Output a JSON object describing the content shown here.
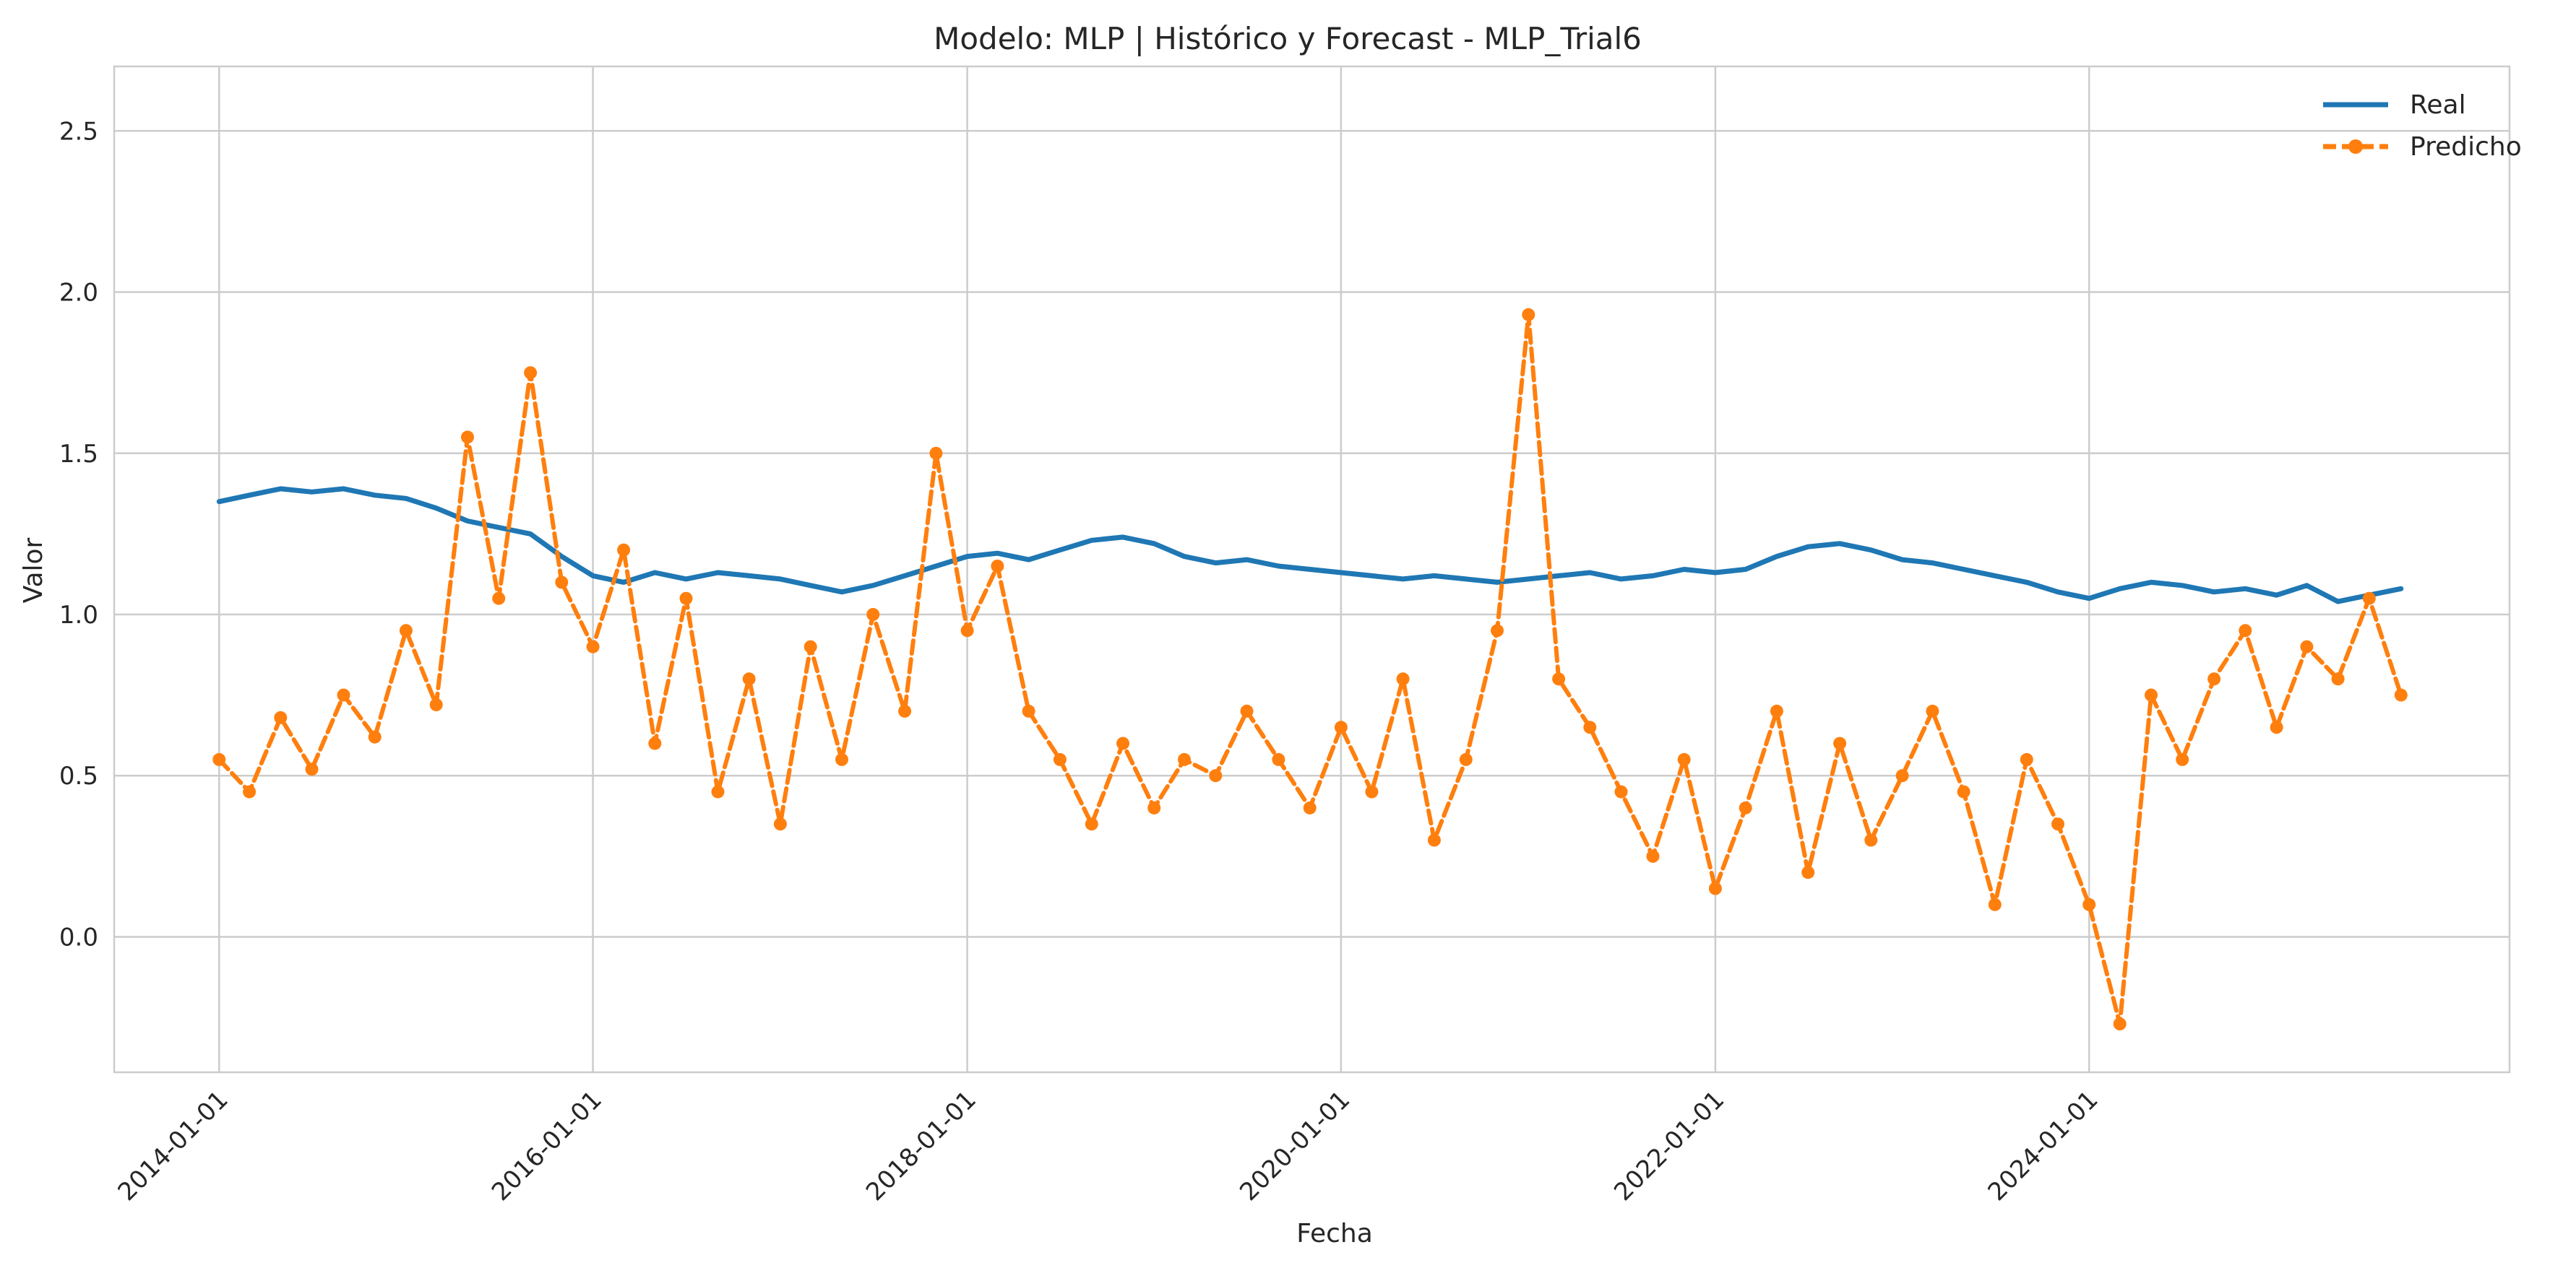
{
  "chart_data": {
    "type": "line",
    "title": "Modelo: MLP | Histórico y Forecast - MLP_Trial6",
    "xlabel": "Fecha",
    "ylabel": "Valor",
    "x_ticks": [
      "2014-01-01",
      "2016-01-01",
      "2018-01-01",
      "2020-01-01",
      "2022-01-01",
      "2024-01-01"
    ],
    "y_ticks": [
      "0.0",
      "0.5",
      "1.0",
      "1.5",
      "2.0",
      "2.5"
    ],
    "xlim": [
      "2013-06-10",
      "2026-04-01"
    ],
    "ylim": [
      -0.42,
      2.7
    ],
    "grid": true,
    "legend_position": "top-right",
    "series": [
      {
        "name": "Real",
        "color": "#1f77b4",
        "style": "solid",
        "points": [
          [
            "2014-01-01",
            1.35
          ],
          [
            "2014-03-01",
            1.37
          ],
          [
            "2014-05-01",
            1.39
          ],
          [
            "2014-07-01",
            1.38
          ],
          [
            "2014-09-01",
            1.39
          ],
          [
            "2014-11-01",
            1.37
          ],
          [
            "2015-01-01",
            1.36
          ],
          [
            "2015-03-01",
            1.33
          ],
          [
            "2015-05-01",
            1.29
          ],
          [
            "2015-07-01",
            1.27
          ],
          [
            "2015-09-01",
            1.25
          ],
          [
            "2015-11-01",
            1.18
          ],
          [
            "2016-01-01",
            1.12
          ],
          [
            "2016-03-01",
            1.1
          ],
          [
            "2016-05-01",
            1.13
          ],
          [
            "2016-07-01",
            1.11
          ],
          [
            "2016-09-01",
            1.13
          ],
          [
            "2016-11-01",
            1.12
          ],
          [
            "2017-01-01",
            1.11
          ],
          [
            "2017-03-01",
            1.09
          ],
          [
            "2017-05-01",
            1.07
          ],
          [
            "2017-07-01",
            1.09
          ],
          [
            "2017-09-01",
            1.12
          ],
          [
            "2017-11-01",
            1.15
          ],
          [
            "2018-01-01",
            1.18
          ],
          [
            "2018-03-01",
            1.19
          ],
          [
            "2018-05-01",
            1.17
          ],
          [
            "2018-07-01",
            1.2
          ],
          [
            "2018-09-01",
            1.23
          ],
          [
            "2018-11-01",
            1.24
          ],
          [
            "2019-01-01",
            1.22
          ],
          [
            "2019-03-01",
            1.18
          ],
          [
            "2019-05-01",
            1.16
          ],
          [
            "2019-07-01",
            1.17
          ],
          [
            "2019-09-01",
            1.15
          ],
          [
            "2019-11-01",
            1.14
          ],
          [
            "2020-01-01",
            1.13
          ],
          [
            "2020-03-01",
            1.12
          ],
          [
            "2020-05-01",
            1.11
          ],
          [
            "2020-07-01",
            1.12
          ],
          [
            "2020-09-01",
            1.11
          ],
          [
            "2020-11-01",
            1.1
          ],
          [
            "2021-01-01",
            1.11
          ],
          [
            "2021-03-01",
            1.12
          ],
          [
            "2021-05-01",
            1.13
          ],
          [
            "2021-07-01",
            1.11
          ],
          [
            "2021-09-01",
            1.12
          ],
          [
            "2021-11-01",
            1.14
          ],
          [
            "2022-01-01",
            1.13
          ],
          [
            "2022-03-01",
            1.14
          ],
          [
            "2022-05-01",
            1.18
          ],
          [
            "2022-07-01",
            1.21
          ],
          [
            "2022-09-01",
            1.22
          ],
          [
            "2022-11-01",
            1.2
          ],
          [
            "2023-01-01",
            1.17
          ],
          [
            "2023-03-01",
            1.16
          ],
          [
            "2023-05-01",
            1.14
          ],
          [
            "2023-07-01",
            1.12
          ],
          [
            "2023-09-01",
            1.1
          ],
          [
            "2023-11-01",
            1.07
          ],
          [
            "2024-01-01",
            1.05
          ],
          [
            "2024-03-01",
            1.08
          ],
          [
            "2024-05-01",
            1.1
          ],
          [
            "2024-07-01",
            1.09
          ],
          [
            "2024-09-01",
            1.07
          ],
          [
            "2024-11-01",
            1.08
          ],
          [
            "2025-01-01",
            1.06
          ],
          [
            "2025-03-01",
            1.09
          ],
          [
            "2025-05-01",
            1.04
          ],
          [
            "2025-07-01",
            1.06
          ],
          [
            "2025-09-01",
            1.08
          ]
        ]
      },
      {
        "name": "Predicho",
        "color": "#ff7f0e",
        "style": "dashed-with-markers",
        "points": [
          [
            "2014-01-01",
            0.55
          ],
          [
            "2014-03-01",
            0.45
          ],
          [
            "2014-05-01",
            0.68
          ],
          [
            "2014-07-01",
            0.52
          ],
          [
            "2014-09-01",
            0.75
          ],
          [
            "2014-11-01",
            0.62
          ],
          [
            "2015-01-01",
            0.95
          ],
          [
            "2015-03-01",
            0.72
          ],
          [
            "2015-05-01",
            1.55
          ],
          [
            "2015-07-01",
            1.05
          ],
          [
            "2015-09-01",
            1.75
          ],
          [
            "2015-11-01",
            1.1
          ],
          [
            "2016-01-01",
            0.9
          ],
          [
            "2016-03-01",
            1.2
          ],
          [
            "2016-05-01",
            0.6
          ],
          [
            "2016-07-01",
            1.05
          ],
          [
            "2016-09-01",
            0.45
          ],
          [
            "2016-11-01",
            0.8
          ],
          [
            "2017-01-01",
            0.35
          ],
          [
            "2017-03-01",
            0.9
          ],
          [
            "2017-05-01",
            0.55
          ],
          [
            "2017-07-01",
            1.0
          ],
          [
            "2017-09-01",
            0.7
          ],
          [
            "2017-11-01",
            1.5
          ],
          [
            "2018-01-01",
            0.95
          ],
          [
            "2018-03-01",
            1.15
          ],
          [
            "2018-05-01",
            0.7
          ],
          [
            "2018-07-01",
            0.55
          ],
          [
            "2018-09-01",
            0.35
          ],
          [
            "2018-11-01",
            0.6
          ],
          [
            "2019-01-01",
            0.4
          ],
          [
            "2019-03-01",
            0.55
          ],
          [
            "2019-05-01",
            0.5
          ],
          [
            "2019-07-01",
            0.7
          ],
          [
            "2019-09-01",
            0.55
          ],
          [
            "2019-11-01",
            0.4
          ],
          [
            "2020-01-01",
            0.65
          ],
          [
            "2020-03-01",
            0.45
          ],
          [
            "2020-05-01",
            0.8
          ],
          [
            "2020-07-01",
            0.3
          ],
          [
            "2020-09-01",
            0.55
          ],
          [
            "2020-11-01",
            0.95
          ],
          [
            "2021-01-01",
            1.93
          ],
          [
            "2021-03-01",
            0.8
          ],
          [
            "2021-05-01",
            0.65
          ],
          [
            "2021-07-01",
            0.45
          ],
          [
            "2021-09-01",
            0.25
          ],
          [
            "2021-11-01",
            0.55
          ],
          [
            "2022-01-01",
            0.15
          ],
          [
            "2022-03-01",
            0.4
          ],
          [
            "2022-05-01",
            0.7
          ],
          [
            "2022-07-01",
            0.2
          ],
          [
            "2022-09-01",
            0.6
          ],
          [
            "2022-11-01",
            0.3
          ],
          [
            "2023-01-01",
            0.5
          ],
          [
            "2023-03-01",
            0.7
          ],
          [
            "2023-05-01",
            0.45
          ],
          [
            "2023-07-01",
            0.1
          ],
          [
            "2023-09-01",
            0.55
          ],
          [
            "2023-11-01",
            0.35
          ],
          [
            "2024-01-01",
            0.1
          ],
          [
            "2024-03-01",
            -0.27
          ],
          [
            "2024-05-01",
            0.75
          ],
          [
            "2024-07-01",
            0.55
          ],
          [
            "2024-09-01",
            0.8
          ],
          [
            "2024-11-01",
            0.95
          ],
          [
            "2025-01-01",
            0.65
          ],
          [
            "2025-03-01",
            0.9
          ],
          [
            "2025-05-01",
            0.8
          ],
          [
            "2025-07-01",
            1.05
          ],
          [
            "2025-09-01",
            0.75
          ]
        ]
      }
    ],
    "legend": [
      {
        "name": "Real",
        "marker": false
      },
      {
        "name": "Predicho",
        "marker": true
      }
    ]
  }
}
